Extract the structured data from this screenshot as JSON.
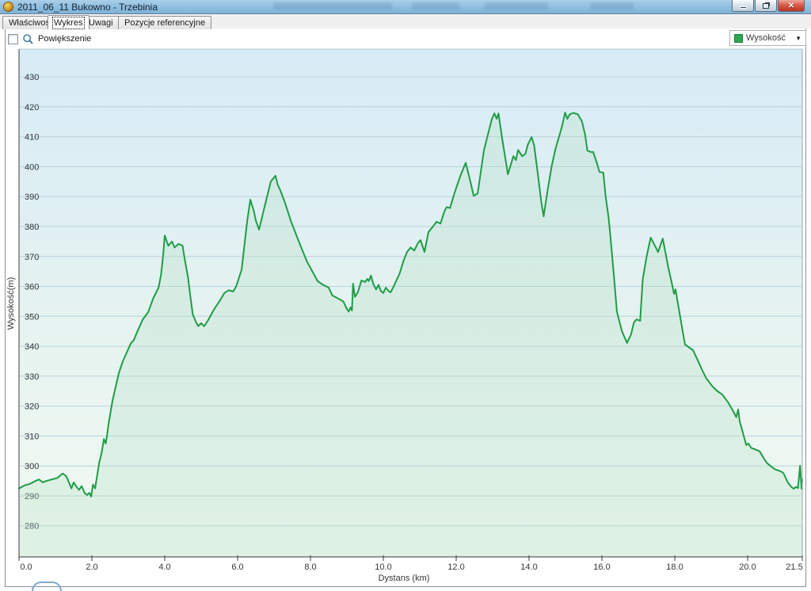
{
  "window": {
    "title": "2011_06_11 Bukowno - Trzebinia",
    "app_icon": "app-icon",
    "buttons": [
      {
        "name": "minimize"
      },
      {
        "name": "restore"
      },
      {
        "name": "close",
        "glyph": "✕"
      }
    ]
  },
  "tabs": [
    {
      "label": "Właściwości",
      "active": false
    },
    {
      "label": "Wykres",
      "active": true
    },
    {
      "label": "Uwagi",
      "active": false
    },
    {
      "label": "Pozycje referencyjne",
      "active": false
    }
  ],
  "toolbar": {
    "zoom_label": "Powiększenie",
    "zoom_checkbox_checked": false
  },
  "legend": {
    "series_label": "Wysokość",
    "swatch_color": "#2fa556",
    "arrow": "▼"
  },
  "colors": {
    "line": "#1f9c46",
    "area_fill": "#b9e0c6",
    "grid": "#b9d2dc",
    "plot_bg_top": "#d7ebf6",
    "plot_bg_bottom": "#f2faf3",
    "titlebar": "#8cbcde"
  },
  "chart_data": {
    "type": "area",
    "title": "",
    "xlabel": "Dystans (km)",
    "ylabel": "Wysokość(m)",
    "legend_position": "top-right",
    "grid": true,
    "xlim": [
      0,
      21.5
    ],
    "ylim": [
      269.6,
      439.3
    ],
    "xtick_values": [
      0,
      2,
      4,
      6,
      8,
      10,
      12,
      14,
      16,
      18,
      20,
      21.5
    ],
    "xtick_labels": [
      "0.0",
      "2.0",
      "4.0",
      "6.0",
      "8.0",
      "10.0",
      "12.0",
      "14.0",
      "16.0",
      "18.0",
      "20.0",
      "21.5"
    ],
    "ytick_values": [
      280,
      290,
      300,
      310,
      320,
      330,
      340,
      350,
      360,
      370,
      380,
      390,
      400,
      410,
      420,
      430
    ],
    "series": [
      {
        "name": "Wysokość",
        "color": "#1f9c46",
        "points": [
          [
            0.0,
            292.5
          ],
          [
            0.15,
            293.5
          ],
          [
            0.3,
            294.0
          ],
          [
            0.45,
            295.0
          ],
          [
            0.55,
            295.5
          ],
          [
            0.65,
            294.5
          ],
          [
            0.75,
            295.0
          ],
          [
            0.9,
            295.5
          ],
          [
            1.05,
            296.0
          ],
          [
            1.2,
            297.5
          ],
          [
            1.3,
            296.5
          ],
          [
            1.44,
            292.5
          ],
          [
            1.5,
            294.5
          ],
          [
            1.58,
            293.0
          ],
          [
            1.65,
            292.0
          ],
          [
            1.72,
            293.3
          ],
          [
            1.8,
            291.0
          ],
          [
            1.87,
            290.3
          ],
          [
            1.93,
            291.0
          ],
          [
            1.98,
            289.8
          ],
          [
            2.03,
            293.8
          ],
          [
            2.09,
            292.5
          ],
          [
            2.2,
            301.0
          ],
          [
            2.27,
            304.5
          ],
          [
            2.33,
            309.0
          ],
          [
            2.38,
            307.5
          ],
          [
            2.42,
            310.5
          ],
          [
            2.46,
            314.3
          ],
          [
            2.57,
            322.0
          ],
          [
            2.74,
            331.0
          ],
          [
            2.85,
            335.0
          ],
          [
            2.96,
            338.0
          ],
          [
            3.07,
            341.0
          ],
          [
            3.15,
            342.0
          ],
          [
            3.25,
            345.0
          ],
          [
            3.4,
            349.0
          ],
          [
            3.55,
            351.5
          ],
          [
            3.68,
            355.9
          ],
          [
            3.83,
            359.6
          ],
          [
            3.9,
            364.0
          ],
          [
            3.96,
            371.0
          ],
          [
            4.0,
            377.0
          ],
          [
            4.1,
            373.6
          ],
          [
            4.2,
            375.0
          ],
          [
            4.27,
            373.0
          ],
          [
            4.38,
            374.2
          ],
          [
            4.49,
            373.6
          ],
          [
            4.55,
            369.0
          ],
          [
            4.64,
            363.0
          ],
          [
            4.7,
            357.0
          ],
          [
            4.77,
            350.6
          ],
          [
            4.86,
            348.0
          ],
          [
            4.92,
            346.7
          ],
          [
            5.0,
            347.7
          ],
          [
            5.08,
            346.7
          ],
          [
            5.18,
            348.5
          ],
          [
            5.36,
            352.5
          ],
          [
            5.51,
            355.2
          ],
          [
            5.64,
            357.8
          ],
          [
            5.75,
            358.7
          ],
          [
            5.88,
            358.3
          ],
          [
            5.96,
            360.0
          ],
          [
            6.11,
            365.6
          ],
          [
            6.26,
            381.6
          ],
          [
            6.35,
            389.0
          ],
          [
            6.45,
            385.0
          ],
          [
            6.5,
            382.0
          ],
          [
            6.59,
            379.0
          ],
          [
            6.72,
            385.6
          ],
          [
            6.91,
            395.0
          ],
          [
            7.04,
            397.0
          ],
          [
            7.1,
            394.0
          ],
          [
            7.17,
            392.2
          ],
          [
            7.3,
            388.0
          ],
          [
            7.47,
            381.6
          ],
          [
            7.7,
            374.4
          ],
          [
            7.9,
            368.4
          ],
          [
            8.2,
            361.7
          ],
          [
            8.35,
            360.5
          ],
          [
            8.5,
            359.6
          ],
          [
            8.6,
            357.0
          ],
          [
            8.75,
            356.0
          ],
          [
            8.9,
            355.0
          ],
          [
            9.0,
            352.5
          ],
          [
            9.05,
            351.6
          ],
          [
            9.1,
            353.0
          ],
          [
            9.14,
            352.0
          ],
          [
            9.17,
            360.9
          ],
          [
            9.22,
            356.5
          ],
          [
            9.3,
            358.0
          ],
          [
            9.4,
            362.0
          ],
          [
            9.5,
            361.5
          ],
          [
            9.56,
            362.5
          ],
          [
            9.6,
            361.8
          ],
          [
            9.66,
            363.6
          ],
          [
            9.72,
            361.0
          ],
          [
            9.8,
            359.0
          ],
          [
            9.87,
            360.5
          ],
          [
            9.93,
            358.5
          ],
          [
            10.0,
            357.8
          ],
          [
            10.07,
            359.6
          ],
          [
            10.14,
            358.5
          ],
          [
            10.2,
            358.0
          ],
          [
            10.3,
            360.4
          ],
          [
            10.45,
            364.4
          ],
          [
            10.55,
            368.4
          ],
          [
            10.65,
            371.5
          ],
          [
            10.75,
            373.0
          ],
          [
            10.85,
            372.0
          ],
          [
            10.95,
            374.5
          ],
          [
            11.02,
            375.5
          ],
          [
            11.13,
            371.5
          ],
          [
            11.24,
            378.2
          ],
          [
            11.35,
            379.8
          ],
          [
            11.46,
            381.6
          ],
          [
            11.57,
            381.0
          ],
          [
            11.68,
            385.2
          ],
          [
            11.74,
            386.5
          ],
          [
            11.83,
            386.2
          ],
          [
            11.96,
            391.5
          ],
          [
            12.11,
            396.8
          ],
          [
            12.26,
            401.3
          ],
          [
            12.35,
            397.0
          ],
          [
            12.48,
            390.3
          ],
          [
            12.59,
            391.0
          ],
          [
            12.76,
            405.4
          ],
          [
            12.87,
            410.7
          ],
          [
            12.98,
            416.0
          ],
          [
            13.05,
            417.8
          ],
          [
            13.11,
            416.0
          ],
          [
            13.16,
            417.8
          ],
          [
            13.27,
            408.8
          ],
          [
            13.42,
            397.5
          ],
          [
            13.57,
            403.5
          ],
          [
            13.64,
            402.2
          ],
          [
            13.7,
            405.6
          ],
          [
            13.81,
            403.5
          ],
          [
            13.9,
            404.3
          ],
          [
            13.96,
            407.2
          ],
          [
            14.07,
            409.9
          ],
          [
            14.14,
            407.2
          ],
          [
            14.25,
            396.7
          ],
          [
            14.33,
            388.7
          ],
          [
            14.4,
            383.4
          ],
          [
            14.51,
            392.2
          ],
          [
            14.62,
            400.1
          ],
          [
            14.73,
            406.2
          ],
          [
            14.84,
            410.7
          ],
          [
            14.9,
            413.3
          ],
          [
            14.99,
            418.1
          ],
          [
            15.05,
            416.0
          ],
          [
            15.12,
            417.5
          ],
          [
            15.22,
            418.0
          ],
          [
            15.34,
            417.5
          ],
          [
            15.45,
            415.2
          ],
          [
            15.54,
            410.7
          ],
          [
            15.6,
            405.4
          ],
          [
            15.7,
            404.9
          ],
          [
            15.76,
            404.9
          ],
          [
            15.87,
            400.9
          ],
          [
            15.93,
            398.3
          ],
          [
            16.04,
            398.0
          ],
          [
            16.1,
            390.3
          ],
          [
            16.19,
            382.4
          ],
          [
            16.25,
            374.4
          ],
          [
            16.32,
            364.9
          ],
          [
            16.41,
            351.6
          ],
          [
            16.55,
            345.0
          ],
          [
            16.69,
            341.1
          ],
          [
            16.8,
            344.0
          ],
          [
            16.88,
            348.0
          ],
          [
            16.95,
            349.0
          ],
          [
            17.05,
            348.5
          ],
          [
            17.12,
            362.3
          ],
          [
            17.23,
            370.2
          ],
          [
            17.34,
            376.3
          ],
          [
            17.44,
            374.0
          ],
          [
            17.54,
            371.5
          ],
          [
            17.6,
            373.5
          ],
          [
            17.67,
            376.0
          ],
          [
            17.82,
            366.5
          ],
          [
            17.93,
            360.4
          ],
          [
            17.98,
            357.5
          ],
          [
            18.02,
            359.0
          ],
          [
            18.1,
            353.3
          ],
          [
            18.21,
            345.4
          ],
          [
            18.28,
            340.6
          ],
          [
            18.37,
            339.8
          ],
          [
            18.5,
            338.7
          ],
          [
            18.65,
            334.8
          ],
          [
            18.76,
            331.8
          ],
          [
            18.87,
            329.2
          ],
          [
            19.02,
            326.8
          ],
          [
            19.15,
            325.2
          ],
          [
            19.3,
            323.9
          ],
          [
            19.46,
            321.3
          ],
          [
            19.59,
            318.6
          ],
          [
            19.69,
            316.3
          ],
          [
            19.74,
            318.9
          ],
          [
            19.78,
            315.0
          ],
          [
            19.89,
            310.2
          ],
          [
            19.96,
            307.0
          ],
          [
            20.02,
            307.5
          ],
          [
            20.1,
            306.0
          ],
          [
            20.17,
            305.7
          ],
          [
            20.33,
            304.9
          ],
          [
            20.46,
            302.2
          ],
          [
            20.54,
            300.9
          ],
          [
            20.67,
            299.6
          ],
          [
            20.76,
            298.8
          ],
          [
            20.89,
            298.3
          ],
          [
            20.98,
            297.7
          ],
          [
            21.04,
            296.1
          ],
          [
            21.11,
            294.3
          ],
          [
            21.2,
            293.0
          ],
          [
            21.26,
            292.4
          ],
          [
            21.33,
            293.0
          ],
          [
            21.38,
            292.6
          ],
          [
            21.44,
            300.1
          ],
          [
            21.48,
            292.4
          ],
          [
            21.5,
            295.5
          ]
        ]
      }
    ]
  }
}
